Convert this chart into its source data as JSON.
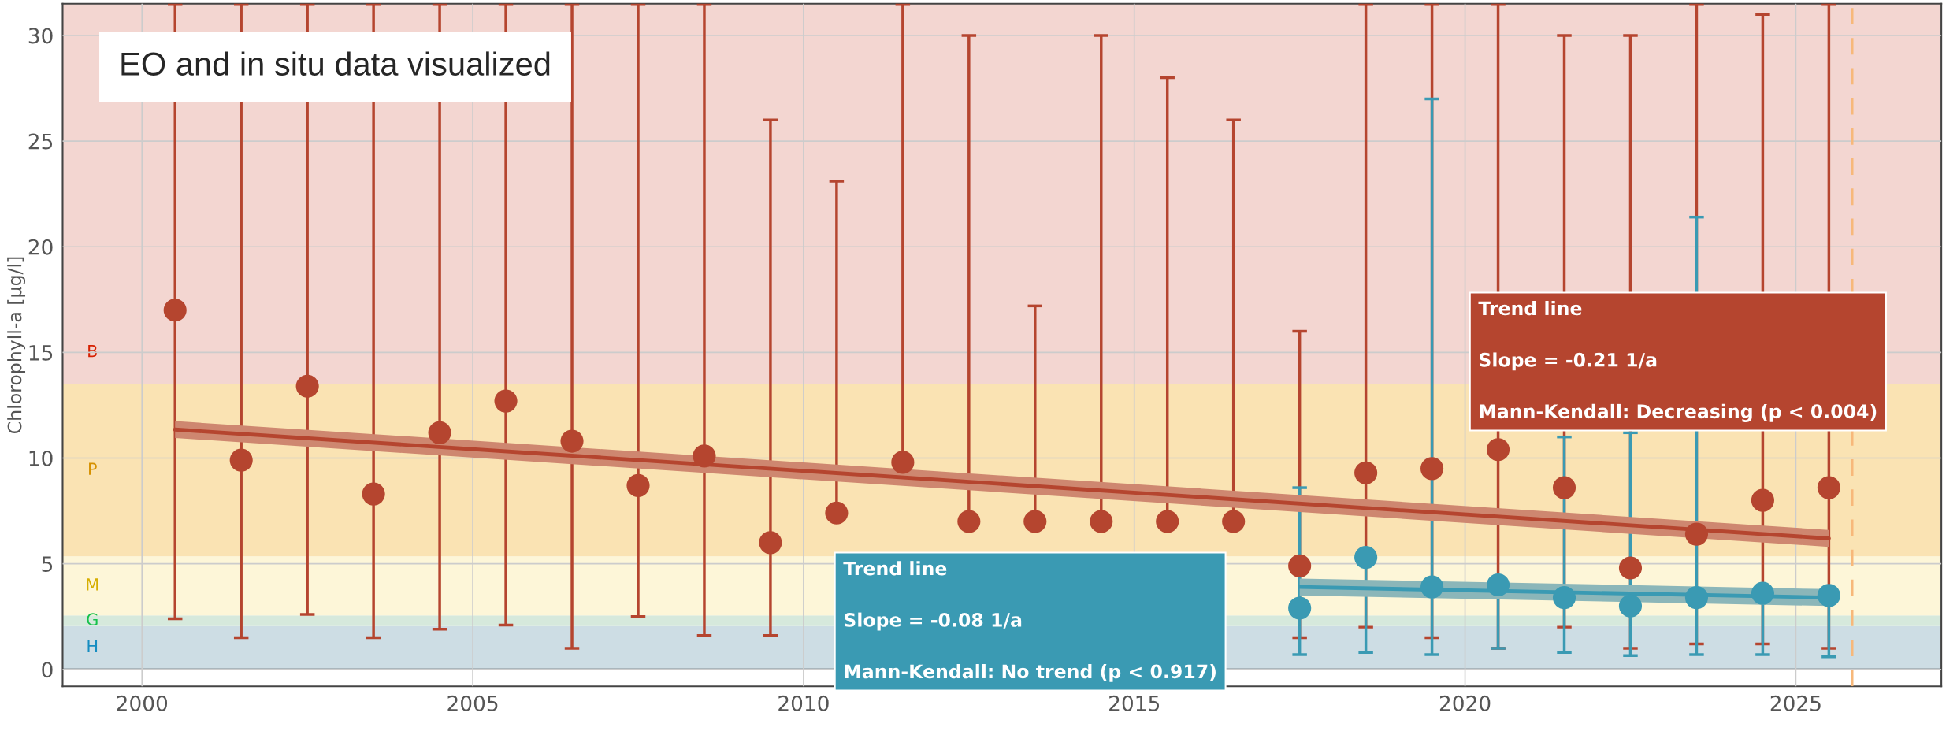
{
  "chart_data": {
    "type": "scatter",
    "title": "EO and in situ data visualized",
    "ylabel": "Chlorophyll-a [µg/l]",
    "xlim": [
      1998.8,
      2027.2
    ],
    "ylim": [
      -0.8,
      31.5
    ],
    "xticks": [
      2000,
      2005,
      2010,
      2015,
      2020,
      2025
    ],
    "yticks": [
      0,
      5,
      10,
      15,
      20,
      25,
      30
    ],
    "grid": true,
    "marker": "circle",
    "legend": false,
    "series": [
      {
        "color": "#b5452f",
        "x": [
          2000.5,
          2001.5,
          2002.5,
          2003.5,
          2004.5,
          2005.5,
          2006.5,
          2007.5,
          2008.5,
          2009.5,
          2010.5,
          2011.5,
          2012.5,
          2013.5,
          2014.5,
          2015.5,
          2016.5,
          2017.5,
          2018.5,
          2019.5,
          2020.5,
          2021.5,
          2022.5,
          2023.5,
          2024.5,
          2025.5
        ],
        "values": [
          17.0,
          9.9,
          13.4,
          8.3,
          11.2,
          12.7,
          10.8,
          8.7,
          10.1,
          6.0,
          7.4,
          9.8,
          7.0,
          7.0,
          7.0,
          7.0,
          7.0,
          4.9,
          9.3,
          9.5,
          10.4,
          8.6,
          4.8,
          6.4,
          8.0,
          8.6
        ],
        "errors": [
          [
            2.4,
            31.5
          ],
          [
            1.5,
            31.5
          ],
          [
            2.6,
            31.5
          ],
          [
            1.5,
            31.5
          ],
          [
            1.9,
            31.5
          ],
          [
            2.1,
            31.5
          ],
          [
            1.0,
            31.5
          ],
          [
            2.5,
            31.5
          ],
          [
            1.6,
            31.5
          ],
          [
            1.6,
            26.0
          ],
          [
            7.4,
            23.1
          ],
          [
            9.8,
            31.5
          ],
          [
            7.0,
            30.0
          ],
          [
            7.0,
            17.2
          ],
          [
            7.0,
            30.0
          ],
          [
            7.0,
            28.0
          ],
          [
            7.0,
            26.0
          ],
          [
            1.5,
            16.0
          ],
          [
            2.0,
            31.5
          ],
          [
            1.5,
            31.5
          ],
          [
            1.0,
            31.5
          ],
          [
            2.0,
            30.0
          ],
          [
            1.0,
            30.0
          ],
          [
            1.2,
            31.5
          ],
          [
            1.2,
            31.0
          ],
          [
            1.0,
            31.5
          ]
        ]
      },
      {
        "color": "#3a9ab3",
        "x": [
          2017.5,
          2018.5,
          2019.5,
          2020.5,
          2021.5,
          2022.5,
          2023.5,
          2024.5,
          2025.5
        ],
        "values": [
          2.9,
          5.3,
          3.9,
          4.0,
          3.4,
          3.0,
          3.4,
          3.6,
          3.5
        ],
        "errors": [
          [
            0.7,
            8.6
          ],
          [
            0.8,
            5.3
          ],
          [
            0.7,
            27.0
          ],
          [
            1.0,
            4.0
          ],
          [
            0.8,
            11.0
          ],
          [
            0.65,
            11.2
          ],
          [
            0.7,
            21.4
          ],
          [
            0.7,
            3.6
          ],
          [
            0.6,
            3.5
          ]
        ]
      },
      {
        "type": "line",
        "marker": "none",
        "color": "#b5452f",
        "x": [
          2000.5,
          2025.5
        ],
        "values": [
          11.35,
          6.2
        ],
        "lower": [
          10.95,
          5.8
        ],
        "upper": [
          11.75,
          6.6
        ]
      },
      {
        "type": "line",
        "marker": "none",
        "color": "#3a9ab3",
        "x": [
          2017.5,
          2025.5
        ],
        "values": [
          3.9,
          3.4
        ],
        "lower": [
          3.5,
          3.0
        ],
        "upper": [
          4.3,
          3.8
        ]
      }
    ],
    "bands": [
      {
        "axis": "y",
        "from": 0,
        "to": 2.05,
        "label": "H",
        "color": "#cddde4"
      },
      {
        "axis": "y",
        "from": 2.05,
        "to": 2.55,
        "label": "G",
        "color": "#d6e9dc"
      },
      {
        "axis": "y",
        "from": 2.55,
        "to": 5.35,
        "label": "M",
        "color": "#fdf6d8"
      },
      {
        "axis": "y",
        "from": 5.35,
        "to": 13.5,
        "label": "P",
        "color": "#fae3b3"
      },
      {
        "axis": "y",
        "from": 13.5,
        "to": 31.5,
        "label": "B",
        "color": "#f3d6d1"
      }
    ],
    "ref_lines": [
      {
        "axis": "x",
        "value": 2025.85,
        "color": "#f7b87a",
        "line_style": "dashed"
      }
    ],
    "annotations": [
      "Trend line\n\nSlope = -0.08 1/a\n\nMann-Kendall: No trend (p < 0.917)",
      "Trend line\n\nSlope = -0.21 1/a\n\nMann-Kendall: Decreasing (p < 0.004)"
    ]
  }
}
